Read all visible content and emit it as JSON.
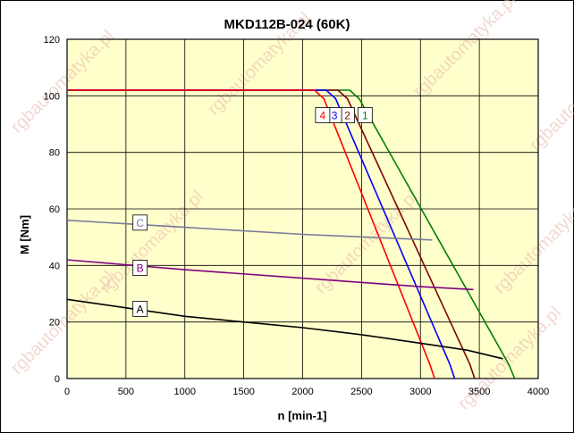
{
  "chart_data": {
    "type": "line",
    "title": "MKD112B-024 (60K)",
    "xlabel": "n [min-1]",
    "ylabel": "M [Nm]",
    "xlim": [
      0,
      4000
    ],
    "ylim": [
      0,
      120
    ],
    "xticks": [
      0,
      500,
      1000,
      1500,
      2000,
      2500,
      3000,
      3500,
      4000
    ],
    "yticks": [
      0,
      20,
      40,
      60,
      80,
      100,
      120
    ],
    "grid": true,
    "watermark": "rgbautomatyka.pl",
    "series": [
      {
        "name": "1",
        "color": "#008000",
        "x": [
          0,
          2400,
          2480,
          3750,
          3800
        ],
        "y": [
          102,
          102,
          99,
          5,
          0
        ],
        "label_at": [
          2530,
          93
        ]
      },
      {
        "name": "2",
        "color": "#800000",
        "x": [
          0,
          2300,
          2380,
          3420,
          3460
        ],
        "y": [
          102,
          102,
          99,
          5,
          0
        ],
        "label_at": [
          2380,
          93
        ]
      },
      {
        "name": "3",
        "color": "#0000ff",
        "x": [
          0,
          2200,
          2280,
          3250,
          3290
        ],
        "y": [
          102,
          102,
          99,
          5,
          0
        ],
        "label_at": [
          2270,
          93
        ]
      },
      {
        "name": "4",
        "color": "#ff0000",
        "x": [
          0,
          2100,
          2180,
          3080,
          3120
        ],
        "y": [
          102,
          102,
          99,
          5,
          0
        ],
        "label_at": [
          2170,
          93
        ]
      },
      {
        "name": "C",
        "color": "#7a7a9a",
        "x": [
          0,
          1000,
          2000,
          3100
        ],
        "y": [
          56,
          53.5,
          51,
          49
        ],
        "label_at": [
          620,
          55
        ]
      },
      {
        "name": "B",
        "color": "#800080",
        "x": [
          0,
          1000,
          2000,
          3000,
          3450
        ],
        "y": [
          42,
          38.5,
          35.5,
          32.5,
          31.5
        ],
        "label_at": [
          620,
          39
        ]
      },
      {
        "name": "A",
        "color": "#000000",
        "x": [
          0,
          500,
          1000,
          1500,
          2000,
          2500,
          3000,
          3400,
          3700
        ],
        "y": [
          28,
          25,
          22,
          20,
          18,
          15.5,
          12.5,
          10,
          7
        ],
        "label_at": [
          620,
          24.5
        ]
      }
    ]
  }
}
